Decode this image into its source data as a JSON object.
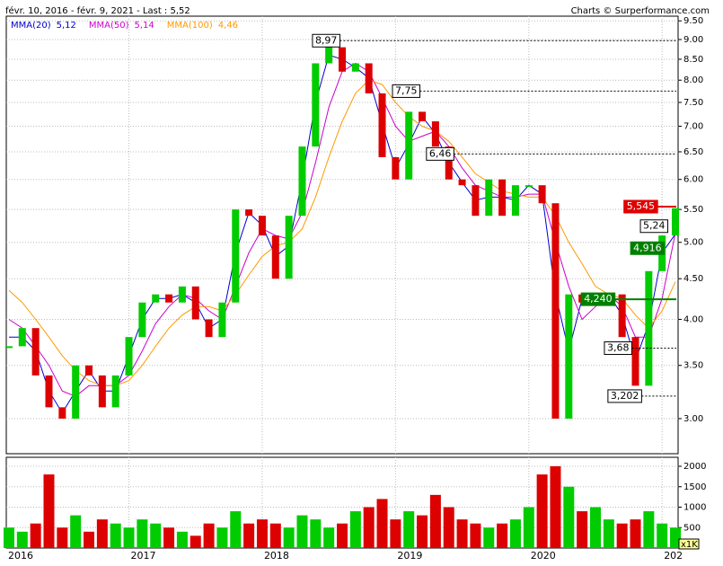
{
  "chart_data": {
    "type": "candlestick",
    "header": "févr. 10, 2016 - févr. 9, 2021 - Last : 5,52",
    "source": "Charts © Surperformance.com",
    "log_scale": true,
    "grid": true,
    "x": [
      2016.1,
      2016.2,
      2016.3,
      2016.4,
      2016.5,
      2016.6,
      2016.7,
      2016.8,
      2016.9,
      2017.0,
      2017.1,
      2017.2,
      2017.3,
      2017.4,
      2017.5,
      2017.6,
      2017.7,
      2017.8,
      2017.9,
      2018.0,
      2018.1,
      2018.2,
      2018.3,
      2018.4,
      2018.5,
      2018.6,
      2018.7,
      2018.8,
      2018.9,
      2019.0,
      2019.1,
      2019.2,
      2019.3,
      2019.4,
      2019.5,
      2019.6,
      2019.7,
      2019.8,
      2019.9,
      2020.0,
      2020.1,
      2020.2,
      2020.3,
      2020.4,
      2020.5,
      2020.6,
      2020.7,
      2020.8,
      2020.9,
      2021.0,
      2021.1
    ],
    "xlim": [
      2016.08,
      2021.12
    ],
    "xticks": [
      2016,
      2017,
      2018,
      2019,
      2020,
      {
        "value": 2021,
        "label": "202"
      }
    ],
    "ylim": [
      2.71,
      9.63
    ],
    "yticks": [
      {
        "value": 9.5,
        "label": "9.50"
      },
      {
        "value": 9,
        "label": "9.00"
      },
      {
        "value": 8.5,
        "label": "8.50"
      },
      {
        "value": 8,
        "label": "8.00"
      },
      {
        "value": 7.5,
        "label": "7.50"
      },
      {
        "value": 7,
        "label": "7.00"
      },
      {
        "value": 6.5,
        "label": "6.50"
      },
      {
        "value": 6,
        "label": "6.00"
      },
      {
        "value": 5.5,
        "label": "5.50"
      },
      {
        "value": 5,
        "label": "5.00"
      },
      {
        "value": 4.5,
        "label": "4.50"
      },
      {
        "value": 4,
        "label": "4.00"
      },
      {
        "value": 3.5,
        "label": "3.50"
      },
      {
        "value": 3,
        "label": "3.00"
      }
    ],
    "price": {
      "up_color": "#00cc00",
      "down_color": "#dd0000",
      "values": [
        3.7,
        3.9,
        3.4,
        3.1,
        3.0,
        3.5,
        3.4,
        3.1,
        3.4,
        3.8,
        4.2,
        4.3,
        4.2,
        4.4,
        4.0,
        3.8,
        4.2,
        5.5,
        5.4,
        5.1,
        4.5,
        5.4,
        6.6,
        8.4,
        8.8,
        8.2,
        8.4,
        7.7,
        6.4,
        6.0,
        7.3,
        7.1,
        6.6,
        6.0,
        5.9,
        5.4,
        6.0,
        5.4,
        5.9,
        5.9,
        5.6,
        3.0,
        4.3,
        4.2,
        4.3,
        4.3,
        3.8,
        3.3,
        4.6,
        5.1,
        5.52
      ]
    },
    "moving_averages": [
      {
        "name": "MMA(20)",
        "color": "#0000cc",
        "last_value": 5.12,
        "last_label": "5,12",
        "values": [
          3.8,
          3.8,
          3.65,
          3.25,
          3.05,
          3.25,
          3.45,
          3.25,
          3.25,
          3.6,
          4.0,
          4.25,
          4.25,
          4.3,
          4.2,
          3.9,
          4.0,
          4.85,
          5.45,
          5.25,
          4.8,
          4.95,
          6.0,
          7.5,
          8.6,
          8.5,
          8.3,
          8.05,
          7.05,
          6.2,
          6.65,
          7.2,
          6.85,
          6.3,
          5.95,
          5.65,
          5.7,
          5.7,
          5.65,
          5.9,
          5.75,
          4.3,
          3.65,
          4.25,
          4.25,
          4.3,
          4.05,
          3.55,
          3.95,
          4.85,
          5.12
        ]
      },
      {
        "name": "MMA(50)",
        "color": "#cc00cc",
        "last_value": 5.14,
        "last_label": "5,14",
        "values": [
          4.0,
          3.9,
          3.7,
          3.5,
          3.25,
          3.2,
          3.3,
          3.3,
          3.3,
          3.4,
          3.65,
          3.95,
          4.15,
          4.3,
          4.25,
          4.1,
          4.0,
          4.4,
          4.85,
          5.2,
          5.1,
          5.05,
          5.45,
          6.3,
          7.4,
          8.2,
          8.4,
          8.2,
          7.6,
          7.0,
          6.7,
          6.8,
          6.9,
          6.6,
          6.2,
          5.9,
          5.8,
          5.7,
          5.7,
          5.75,
          5.75,
          5.0,
          4.4,
          4.0,
          4.15,
          4.3,
          4.15,
          3.8,
          3.8,
          4.25,
          5.14
        ]
      },
      {
        "name": "MMA(100)",
        "color": "#ff9900",
        "last_value": 4.46,
        "last_label": "4,46",
        "values": [
          4.35,
          4.2,
          4.0,
          3.8,
          3.6,
          3.45,
          3.35,
          3.3,
          3.3,
          3.35,
          3.5,
          3.7,
          3.9,
          4.05,
          4.15,
          4.15,
          4.1,
          4.3,
          4.55,
          4.8,
          4.95,
          5.0,
          5.2,
          5.7,
          6.4,
          7.1,
          7.7,
          8.0,
          7.9,
          7.5,
          7.2,
          7.0,
          6.9,
          6.7,
          6.4,
          6.1,
          5.95,
          5.8,
          5.75,
          5.7,
          5.7,
          5.4,
          5.0,
          4.7,
          4.4,
          4.3,
          4.25,
          4.05,
          3.9,
          4.1,
          4.46
        ]
      }
    ],
    "annotations": [
      {
        "value": 8.97,
        "label": "8,97",
        "x": 2018.48,
        "fill": "#ffffff",
        "line": "dashed"
      },
      {
        "value": 7.75,
        "label": "7,75",
        "x": 2019.08,
        "fill": "#ffffff",
        "line": "dashed"
      },
      {
        "value": 6.46,
        "label": "6,46",
        "x": 2019.335,
        "fill": "#ffffff",
        "line": "dashed"
      },
      {
        "value": 5.545,
        "label": "5,545",
        "x": 2020.84,
        "fill": "#e00000",
        "line": "solid"
      },
      {
        "value": 5.24,
        "label": "5,24",
        "x": 2020.94,
        "fill": "#ffffff",
        "line": "none"
      },
      {
        "value": 4.916,
        "label": "4,916",
        "x": 2020.89,
        "fill": "#008000",
        "line": "none"
      },
      {
        "value": 4.24,
        "label": "4,240",
        "x": 2020.52,
        "fill": "#008000",
        "line": "solid"
      },
      {
        "value": 3.68,
        "label": "3,68",
        "x": 2020.67,
        "fill": "#ffffff",
        "line": "dashed"
      },
      {
        "value": 3.202,
        "label": "3,202",
        "x": 2020.72,
        "fill": "#ffffff",
        "line": "dashed"
      }
    ],
    "volume": {
      "unit": "x1K",
      "ylim": [
        0,
        2220
      ],
      "yticks": [
        500,
        1000,
        1500,
        2000
      ],
      "values": [
        500,
        400,
        600,
        1800,
        500,
        800,
        400,
        700,
        600,
        500,
        700,
        600,
        500,
        400,
        300,
        600,
        500,
        900,
        600,
        700,
        600,
        500,
        800,
        700,
        500,
        600,
        900,
        1000,
        1200,
        700,
        900,
        800,
        1300,
        1000,
        700,
        600,
        500,
        600,
        700,
        1000,
        1800,
        2000,
        1500,
        900,
        1000,
        700,
        600,
        700,
        900,
        600,
        500
      ]
    }
  }
}
